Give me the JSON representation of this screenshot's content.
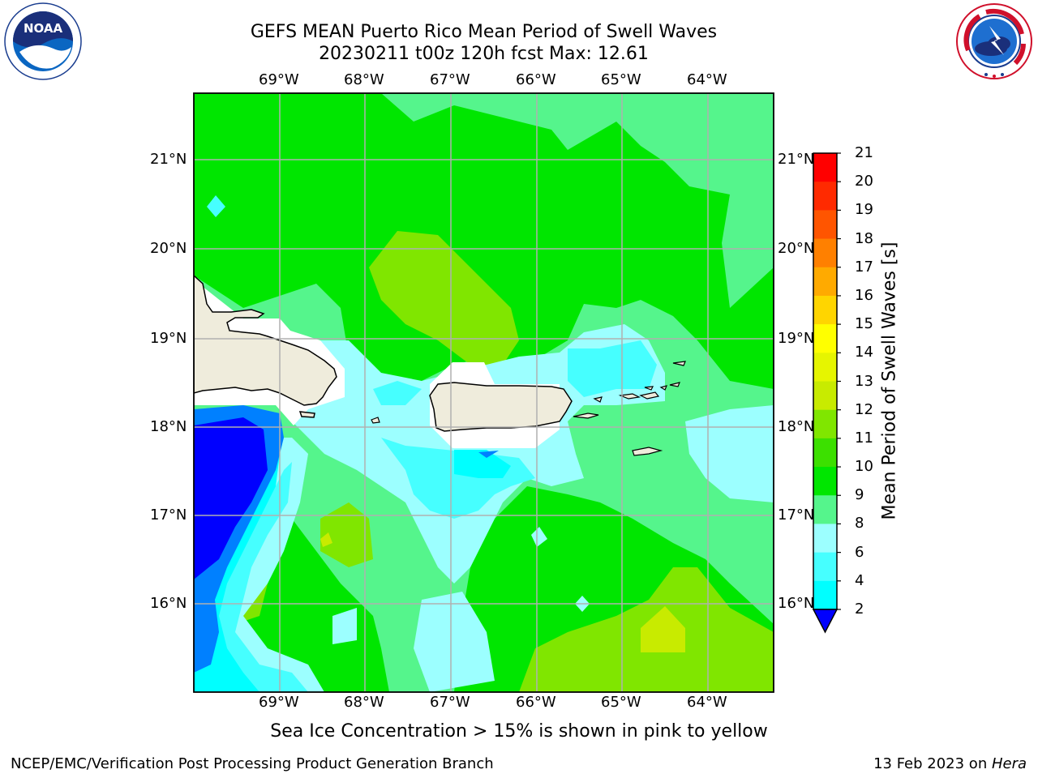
{
  "title": {
    "line1": "GEFS MEAN Puerto Rico Mean Period of Swell Waves",
    "line2": "20230211 t00z 120h fcst   Max: 12.61"
  },
  "logos": {
    "left": {
      "name": "noaa-logo",
      "text": "NOAA"
    },
    "right": {
      "name": "nws-logo",
      "ring_text": "NATIONAL WEATHER SERVICE"
    }
  },
  "map": {
    "lon_labels": [
      "69°W",
      "68°W",
      "67°W",
      "66°W",
      "65°W",
      "64°W"
    ],
    "lat_labels": [
      "21°N",
      "20°N",
      "19°N",
      "18°N",
      "17°N",
      "16°N"
    ],
    "land_color": "#efecdc",
    "grid_color": "#b0b0b0"
  },
  "colorbar": {
    "title": "Mean Period of Swell Waves [s]",
    "ticks": [
      "21",
      "20",
      "19",
      "18",
      "17",
      "16",
      "15",
      "14",
      "13",
      "12",
      "11",
      "10",
      "9",
      "8",
      "6",
      "4",
      "2"
    ],
    "colors": [
      "#ff0000",
      "#ff2a00",
      "#ff5500",
      "#ff8000",
      "#ffaa00",
      "#ffd500",
      "#ffff00",
      "#e6f500",
      "#c8eb00",
      "#80e600",
      "#3ce000",
      "#00e600",
      "#55f58c",
      "#9cffff",
      "#46ffff",
      "#00ffff",
      "#0080ff",
      "#0000ff"
    ]
  },
  "note": "Sea Ice Concentration > 15% is shown in pink to yellow",
  "footer": {
    "left": "NCEP/EMC/Verification Post Processing Product Generation Branch",
    "right_date": "13 Feb 2023 on ",
    "right_host": "Hera"
  }
}
